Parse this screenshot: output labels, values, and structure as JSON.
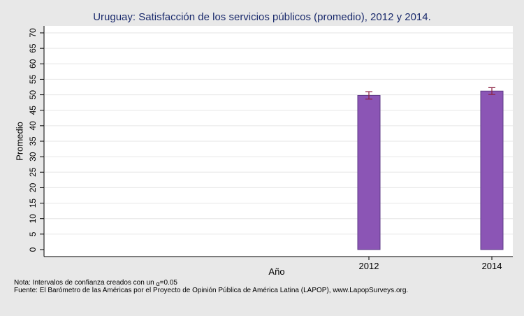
{
  "chart_data": {
    "type": "bar",
    "title": "Uruguay: Satisfacción de los servicios públicos (promedio), 2012 y 2014.",
    "xlabel": "Año",
    "ylabel": "Promedio",
    "categories": [
      "2012",
      "2014"
    ],
    "values": [
      49.8,
      51.2
    ],
    "ci_low": [
      48.6,
      50.1
    ],
    "ci_high": [
      51.0,
      52.3
    ],
    "ylim": [
      0,
      70
    ],
    "yticks": [
      0,
      5,
      10,
      15,
      20,
      25,
      30,
      35,
      40,
      45,
      50,
      55,
      60,
      65,
      70
    ],
    "grid": true,
    "colors": {
      "bar": "#8b55b5",
      "bar_edge": "#5e3a86",
      "error_bar": "#8b2040",
      "plot_bg": "#ffffff",
      "page_bg": "#e8e8e8",
      "grid": "#e6e6e6",
      "title": "#1a2a6c"
    }
  },
  "notes": {
    "line1_prefix": "Nota: Intervalos de confianza creados con un ",
    "line1_symbol": "α",
    "line1_suffix": "=0.05",
    "line2": "Fuente: El Barómetro de las Américas por el Proyecto de Opinión Pública de América Latina (LAPOP), www.LapopSurveys.org."
  }
}
